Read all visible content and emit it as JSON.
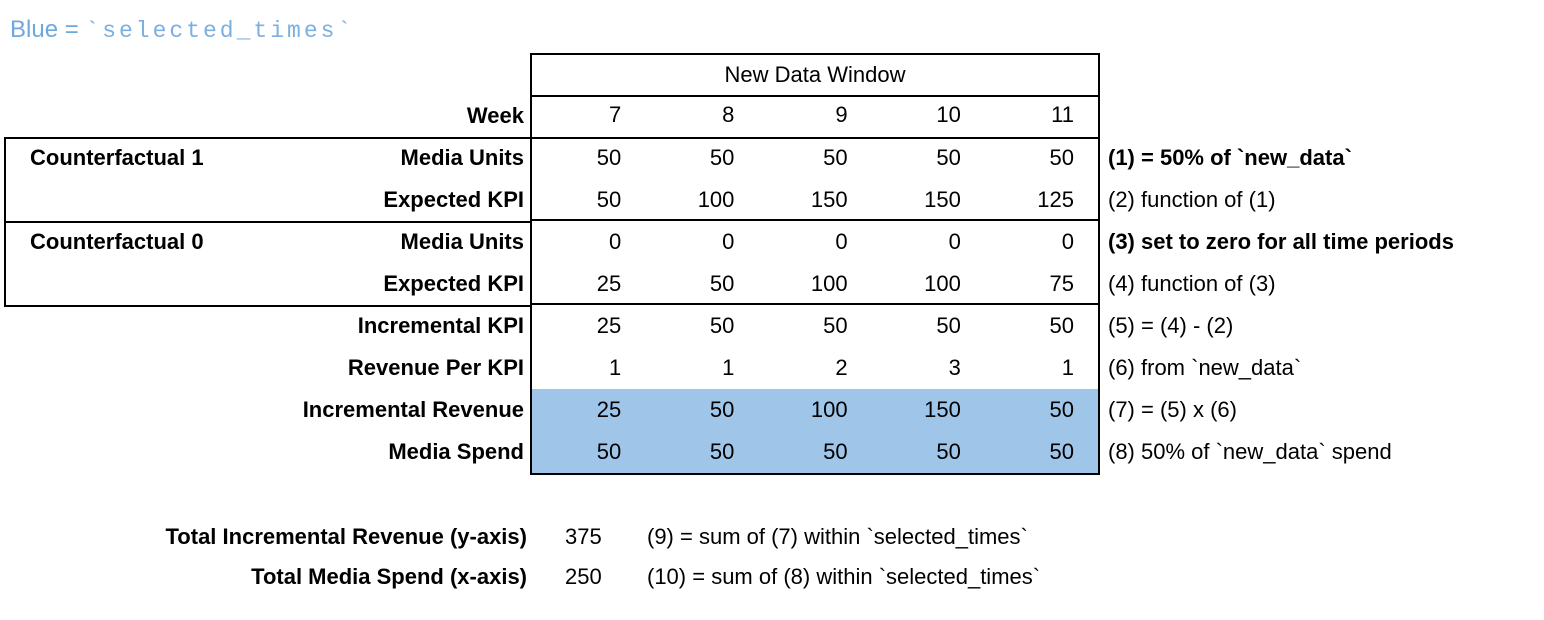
{
  "legend": {
    "prefix": "Blue = ",
    "code": "`selected_times`"
  },
  "colors": {
    "highlight_blue": "#9fc5e8",
    "legend_text_blue": "#6fa8dc",
    "border": "#000000"
  },
  "table": {
    "window_title": "New Data Window",
    "week_label": "Week",
    "weeks": [
      "7",
      "8",
      "9",
      "10",
      "11"
    ],
    "groups": [
      {
        "label": "Counterfactual 1"
      },
      {
        "label": "Counterfactual 0"
      }
    ],
    "rows": [
      {
        "label": "Media Units",
        "values": [
          "50",
          "50",
          "50",
          "50",
          "50"
        ],
        "note": "(1) = 50% of `new_data`",
        "note_bold": true,
        "highlight": false
      },
      {
        "label": "Expected KPI",
        "values": [
          "50",
          "100",
          "150",
          "150",
          "125"
        ],
        "note": "(2) function of (1)",
        "note_bold": false,
        "highlight": false
      },
      {
        "label": "Media Units",
        "values": [
          "0",
          "0",
          "0",
          "0",
          "0"
        ],
        "note": "(3) set to zero for all time periods",
        "note_bold": true,
        "highlight": false
      },
      {
        "label": "Expected KPI",
        "values": [
          "25",
          "50",
          "100",
          "100",
          "75"
        ],
        "note": "(4) function of (3)",
        "note_bold": false,
        "highlight": false
      },
      {
        "label": "Incremental KPI",
        "values": [
          "25",
          "50",
          "50",
          "50",
          "50"
        ],
        "note": "(5) = (4) - (2)",
        "note_bold": false,
        "highlight": false
      },
      {
        "label": "Revenue Per KPI",
        "values": [
          "1",
          "1",
          "2",
          "3",
          "1"
        ],
        "note": "(6) from `new_data`",
        "note_bold": false,
        "highlight": false
      },
      {
        "label": "Incremental Revenue",
        "values": [
          "25",
          "50",
          "100",
          "150",
          "50"
        ],
        "note": "(7) = (5) x (6)",
        "note_bold": false,
        "highlight": true
      },
      {
        "label": "Media Spend",
        "values": [
          "50",
          "50",
          "50",
          "50",
          "50"
        ],
        "note": "(8) 50% of `new_data` spend",
        "note_bold": false,
        "highlight": true
      }
    ]
  },
  "totals": [
    {
      "label": "Total Incremental Revenue (y-axis)",
      "value": "375",
      "note": "(9) = sum of (7) within `selected_times`"
    },
    {
      "label": "Total Media Spend (x-axis)",
      "value": "250",
      "note": "(10) = sum of (8) within `selected_times`"
    }
  ]
}
